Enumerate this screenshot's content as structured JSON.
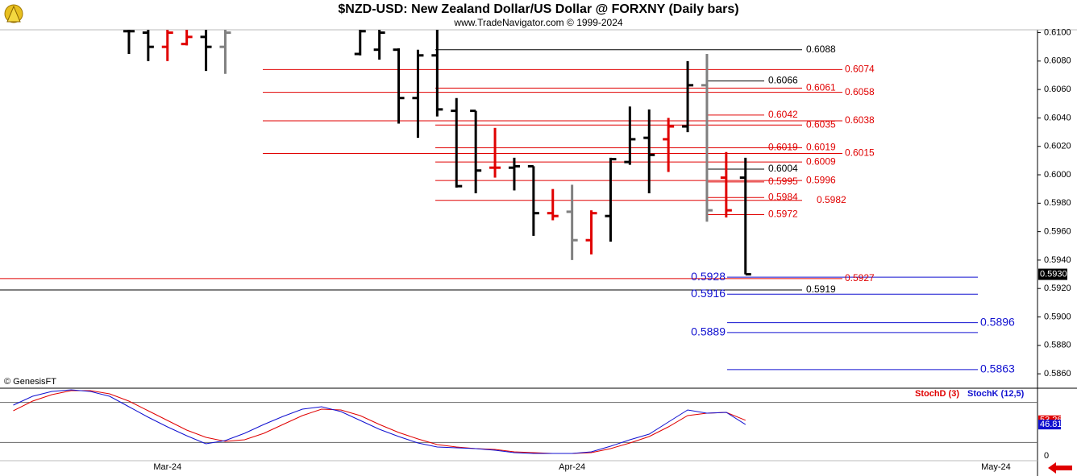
{
  "header": {
    "title": "$NZD-USD:  New Zealand Dollar/US Dollar @ FORXNY  (Daily bars)",
    "subtitle": "www.TradeNavigator.com © 1999-2024",
    "credit": "© GenesisFT"
  },
  "chart_data": [
    {
      "type": "ohlc",
      "categories": [
        null,
        null,
        null,
        null,
        null,
        null,
        null,
        null,
        "Mar-24",
        null,
        null,
        null,
        null,
        null,
        null,
        null,
        null,
        null,
        null,
        null,
        null,
        null,
        null,
        null,
        null,
        null,
        null,
        null,
        null,
        "Apr-24",
        null,
        null,
        null,
        null,
        null,
        null,
        null,
        null,
        null,
        null,
        null,
        null,
        null,
        null,
        null,
        null,
        null,
        null,
        null,
        null,
        null,
        "May-24",
        null
      ],
      "open": [
        null,
        null,
        null,
        null,
        null,
        null,
        0.6101,
        0.61,
        0.609,
        0.6092,
        0.6097,
        0.609,
        null,
        null,
        null,
        null,
        null,
        null,
        0.6085,
        0.6088,
        0.6088,
        0.6054,
        0.6084,
        0.6045,
        0.6045,
        0.6005,
        0.6005,
        0.6006,
        0.5973,
        0.5974,
        0.5954,
        0.5971,
        0.6009,
        0.6026,
        0.6025,
        0.6034,
        0.6063,
        0.5998,
        0.5998,
        null,
        null,
        null,
        null,
        null,
        null,
        null,
        null,
        null,
        null,
        null,
        null,
        null,
        null
      ],
      "high": [
        null,
        null,
        null,
        null,
        null,
        null,
        0.6112,
        0.611,
        0.6108,
        0.6108,
        0.611,
        0.611,
        null,
        null,
        null,
        null,
        null,
        null,
        0.611,
        0.6108,
        0.6089,
        0.6088,
        0.6108,
        0.6054,
        0.6045,
        0.6033,
        0.6012,
        0.6006,
        0.599,
        0.5993,
        0.5975,
        0.6012,
        0.6048,
        0.6046,
        0.604,
        0.608,
        0.6085,
        0.6016,
        0.6012,
        null,
        null,
        null,
        null,
        null,
        null,
        null,
        null,
        null,
        null,
        null,
        null,
        null,
        null
      ],
      "low": [
        null,
        null,
        null,
        null,
        null,
        null,
        0.6085,
        0.608,
        0.608,
        0.6091,
        0.6073,
        0.6071,
        null,
        null,
        null,
        null,
        null,
        null,
        0.6084,
        0.6081,
        0.6036,
        0.6026,
        0.6041,
        0.5991,
        0.5987,
        0.5998,
        0.5989,
        0.5957,
        0.5968,
        0.594,
        0.5944,
        0.5953,
        0.6007,
        0.5987,
        0.6002,
        0.603,
        0.5967,
        0.597,
        0.593,
        null,
        null,
        null,
        null,
        null,
        null,
        null,
        null,
        null,
        null,
        null,
        null,
        null,
        null
      ],
      "close": [
        null,
        null,
        null,
        null,
        null,
        null,
        0.6101,
        0.609,
        0.61,
        0.6097,
        0.609,
        0.61,
        null,
        null,
        null,
        null,
        null,
        null,
        0.6101,
        0.61,
        0.6054,
        0.6084,
        0.6046,
        0.5992,
        0.6003,
        0.6005,
        0.6006,
        0.5973,
        0.5971,
        0.5954,
        0.5973,
        0.6011,
        0.6025,
        0.6014,
        0.6034,
        0.6063,
        0.5975,
        0.5975,
        0.593,
        null,
        null,
        null,
        null,
        null,
        null,
        null,
        null,
        null,
        null,
        null,
        null,
        null,
        null
      ],
      "colors": [
        null,
        null,
        null,
        null,
        null,
        null,
        "#000000",
        "#000000",
        "#e00000",
        "#e00000",
        "#000000",
        "#808080",
        null,
        null,
        null,
        null,
        null,
        null,
        "#000000",
        "#000000",
        "#000000",
        "#000000",
        "#000000",
        "#000000",
        "#000000",
        "#e00000",
        "#000000",
        "#000000",
        "#e00000",
        "#808080",
        "#e00000",
        "#000000",
        "#000000",
        "#000000",
        "#e00000",
        "#000000",
        "#808080",
        "#e00000",
        "#000000",
        null,
        null,
        null,
        null,
        null,
        null,
        null,
        null,
        null,
        null,
        null,
        null,
        null,
        null
      ],
      "ylim": [
        0.5851,
        0.6102
      ],
      "yticks": [
        {
          "value": 0.61,
          "label": "0.6100"
        },
        {
          "value": 0.608,
          "label": "0.6080"
        },
        {
          "value": 0.606,
          "label": "0.6060"
        },
        {
          "value": 0.604,
          "label": "0.6040"
        },
        {
          "value": 0.602,
          "label": "0.6020"
        },
        {
          "value": 0.6,
          "label": "0.6000"
        },
        {
          "value": 0.598,
          "label": "0.5980"
        },
        {
          "value": 0.596,
          "label": "0.5960"
        },
        {
          "value": 0.594,
          "label": "0.5940"
        },
        {
          "value": 0.592,
          "label": "0.5920"
        },
        {
          "value": 0.59,
          "label": "0.5900"
        },
        {
          "value": 0.588,
          "label": "0.5880"
        },
        {
          "value": 0.586,
          "label": "0.5860"
        }
      ],
      "last_price": {
        "value": 0.593,
        "label": "0.5930"
      },
      "levels": [
        {
          "value": 0.6088,
          "color": "#000000"
        },
        {
          "value": 0.6074,
          "color": "#e00000"
        },
        {
          "value": 0.6066,
          "color": "#000000"
        },
        {
          "value": 0.6061,
          "color": "#e00000"
        },
        {
          "value": 0.6058,
          "color": "#e00000"
        },
        {
          "value": 0.6042,
          "color": "#e00000"
        },
        {
          "value": 0.6038,
          "color": "#e00000"
        },
        {
          "value": 0.6035,
          "color": "#e00000"
        },
        {
          "value": 0.6019,
          "color": "#e00000"
        },
        {
          "value": 0.6019,
          "color": "#e00000"
        },
        {
          "value": 0.6015,
          "color": "#e00000"
        },
        {
          "value": 0.6009,
          "color": "#e00000"
        },
        {
          "value": 0.6004,
          "color": "#000000"
        },
        {
          "value": 0.5996,
          "color": "#e00000"
        },
        {
          "value": 0.5995,
          "color": "#e00000"
        },
        {
          "value": 0.5984,
          "color": "#e00000"
        },
        {
          "value": 0.5982,
          "color": "#e00000"
        },
        {
          "value": 0.5972,
          "color": "#e00000"
        },
        {
          "value": 0.5927,
          "color": "#e00000"
        },
        {
          "value": 0.5919,
          "color": "#000000"
        },
        {
          "value": 0.5928,
          "color": "#1010d0"
        },
        {
          "value": 0.5916,
          "color": "#1010d0"
        },
        {
          "value": 0.5896,
          "color": "#1010d0"
        },
        {
          "value": 0.5889,
          "color": "#1010d0"
        },
        {
          "value": 0.5863,
          "color": "#1010d0"
        }
      ]
    },
    {
      "type": "line",
      "series": [
        {
          "name": "StochD (3)",
          "color": "#e00000",
          "values": [
            67.5,
            81.9,
            91.6,
            97.6,
            97.6,
            92.8,
            81.9,
            67.5,
            53.0,
            38.6,
            27.7,
            21.7,
            24.1,
            33.7,
            47.0,
            60.2,
            69.9,
            68.7,
            60.2,
            47.0,
            34.9,
            25.3,
            16.9,
            13.3,
            10.8,
            9.6,
            6.0,
            4.8,
            3.6,
            3.6,
            4.8,
            10.8,
            19.3,
            28.9,
            43.4,
            60.2,
            63.9,
            65.1,
            53.26,
            null,
            null,
            null,
            null,
            null,
            null,
            null,
            null,
            null,
            null,
            null,
            null,
            null,
            null
          ]
        },
        {
          "name": "StochK (12,5)",
          "color": "#1010d0",
          "values": [
            75.9,
            89.2,
            96.4,
            98.8,
            96.4,
            89.2,
            73.5,
            57.8,
            43.4,
            30.1,
            18.1,
            22.9,
            33.7,
            47.0,
            59.0,
            69.9,
            73.5,
            66.3,
            53.0,
            39.8,
            28.9,
            19.3,
            13.3,
            12.0,
            10.8,
            8.4,
            4.8,
            3.6,
            3.6,
            3.6,
            6.0,
            14.5,
            24.1,
            32.5,
            50.6,
            68.7,
            63.9,
            65.1,
            46.81,
            null,
            null,
            null,
            null,
            null,
            null,
            null,
            null,
            null,
            null,
            null,
            null,
            null,
            null
          ]
        }
      ],
      "ylim": [
        0,
        100
      ],
      "yticks": [
        0
      ],
      "ref_lines": [
        80,
        20
      ]
    }
  ]
}
